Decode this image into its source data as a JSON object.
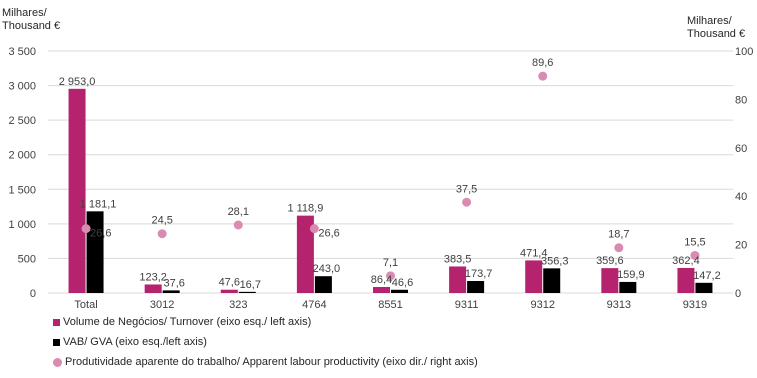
{
  "colors": {
    "turnover": "#b5226e",
    "gva": "#000000",
    "productivity": "#d98bb2",
    "grid": "#d9d9d9",
    "text": "#404040"
  },
  "chart_data": {
    "type": "bar",
    "categories": [
      "Total",
      "3012",
      "323",
      "4764",
      "8551",
      "9311",
      "9312",
      "9313",
      "9319"
    ],
    "left_axis": {
      "title_line1": "Milhares/",
      "title_line2": "Thousand €",
      "ylim": [
        0,
        3500
      ],
      "ticks": [
        0,
        500,
        1000,
        1500,
        2000,
        2500,
        3000,
        3500
      ],
      "tick_labels": [
        "0",
        "500",
        "1 000",
        "1 500",
        "2 000",
        "2 500",
        "3 000",
        "3 500"
      ]
    },
    "right_axis": {
      "title_line1": "Milhares/",
      "title_line2": "Thousand €",
      "ylim": [
        0,
        100
      ],
      "ticks": [
        0,
        20,
        40,
        60,
        80,
        100
      ],
      "tick_labels": [
        "0",
        "20",
        "40",
        "60",
        "80",
        "100"
      ]
    },
    "grid": true,
    "legend_position": "bottom-left",
    "series": [
      {
        "name": "Volume de Negócios/ Turnover (eixo esq./ left axis)",
        "kind": "bar",
        "axis": "left",
        "values": [
          2953.0,
          123.2,
          47.6,
          1118.9,
          86.4,
          383.5,
          471.4,
          359.6,
          362.4
        ],
        "labels": [
          "2 953,0",
          "123,2",
          "47,6",
          "1 118,9",
          "86,4",
          "383,5",
          "471,4",
          "359,6",
          "362,4"
        ]
      },
      {
        "name": "VAB/ GVA (eixo esq./left axis)",
        "kind": "bar",
        "axis": "left",
        "values": [
          1181.1,
          37.6,
          16.7,
          243.0,
          46.6,
          173.7,
          356.3,
          159.9,
          147.2
        ],
        "labels": [
          "1 181,1",
          "37,6",
          "16,7",
          "243,0",
          "46,6",
          "173,7",
          "356,3",
          "159,9",
          "147,2"
        ]
      },
      {
        "name": "Produtividade aparente do trabalho/ Apparent labour productivity (eixo dir./ right axis)",
        "kind": "scatter",
        "axis": "right",
        "values": [
          26.6,
          24.5,
          28.1,
          26.6,
          7.1,
          37.5,
          89.6,
          18.7,
          15.5
        ],
        "labels": [
          "26,6",
          "24,5",
          "28,1",
          "26,6",
          "7,1",
          "37,5",
          "89,6",
          "18,7",
          "15,5"
        ]
      }
    ]
  }
}
